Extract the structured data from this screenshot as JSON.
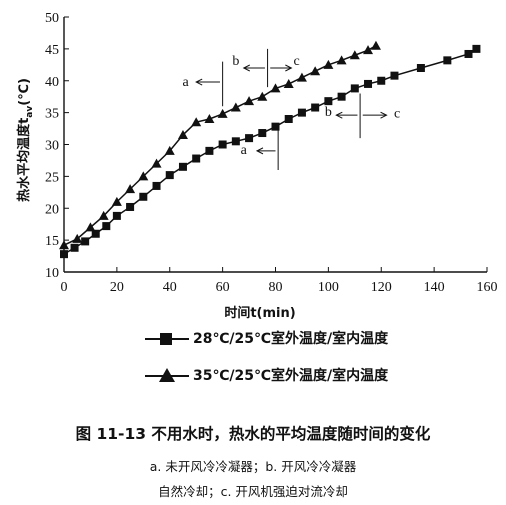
{
  "chart_data": {
    "type": "line",
    "xlabel": "时间t(min)",
    "ylabel": "热水平均温度t",
    "ylabel_sub": "av",
    "ylabel_unit": "(℃)",
    "xlim": [
      0,
      160
    ],
    "ylim": [
      10,
      50
    ],
    "x_ticks": [
      0,
      20,
      40,
      60,
      80,
      100,
      120,
      140,
      160
    ],
    "y_ticks": [
      10,
      15,
      20,
      25,
      30,
      35,
      40,
      45,
      50
    ],
    "grid": false,
    "series": [
      {
        "name": "28℃/25℃室外温度/室内温度",
        "marker": "square",
        "x": [
          0,
          4,
          8,
          12,
          16,
          20,
          25,
          30,
          35,
          40,
          45,
          50,
          55,
          60,
          65,
          70,
          75,
          80,
          85,
          90,
          95,
          100,
          105,
          110,
          115,
          120,
          125,
          135,
          145,
          153,
          156
        ],
        "y": [
          12.8,
          13.8,
          14.8,
          16.0,
          17.2,
          18.8,
          20.2,
          21.8,
          23.5,
          25.2,
          26.5,
          27.8,
          29.0,
          30.0,
          30.5,
          31.0,
          31.8,
          32.8,
          34.0,
          35.0,
          35.8,
          36.8,
          37.5,
          38.8,
          39.5,
          40.0,
          40.8,
          42.0,
          43.2,
          44.2,
          45.0
        ]
      },
      {
        "name": "35℃/25℃室外温度/室内温度",
        "marker": "triangle",
        "x": [
          0,
          5,
          10,
          15,
          20,
          25,
          30,
          35,
          40,
          45,
          50,
          55,
          60,
          65,
          70,
          75,
          80,
          85,
          90,
          95,
          100,
          105,
          110,
          115,
          118
        ],
        "y": [
          14.2,
          15.2,
          17.0,
          18.8,
          21.0,
          23.0,
          25.0,
          27.0,
          29.0,
          31.5,
          33.5,
          34.0,
          34.8,
          35.8,
          36.8,
          37.5,
          38.8,
          39.5,
          40.5,
          41.5,
          42.5,
          43.2,
          44.0,
          44.8,
          45.5
        ]
      }
    ],
    "annotations": [
      {
        "text": "a",
        "x": 46,
        "y": 39.2
      },
      {
        "text": "b",
        "x": 65,
        "y": 42.5
      },
      {
        "text": "c",
        "x": 88,
        "y": 42.5
      },
      {
        "text": "a",
        "x": 68,
        "y": 28.5
      },
      {
        "text": "b",
        "x": 100,
        "y": 34.5
      },
      {
        "text": "c",
        "x": 126,
        "y": 34.2
      }
    ]
  },
  "caption": "图 11-13   不用水时，热水的平均温度随时间的变化",
  "notes": [
    "a. 未开风冷冷凝器；b. 开风冷冷凝器",
    "自然冷却；c. 开风机强迫对流冷却"
  ]
}
